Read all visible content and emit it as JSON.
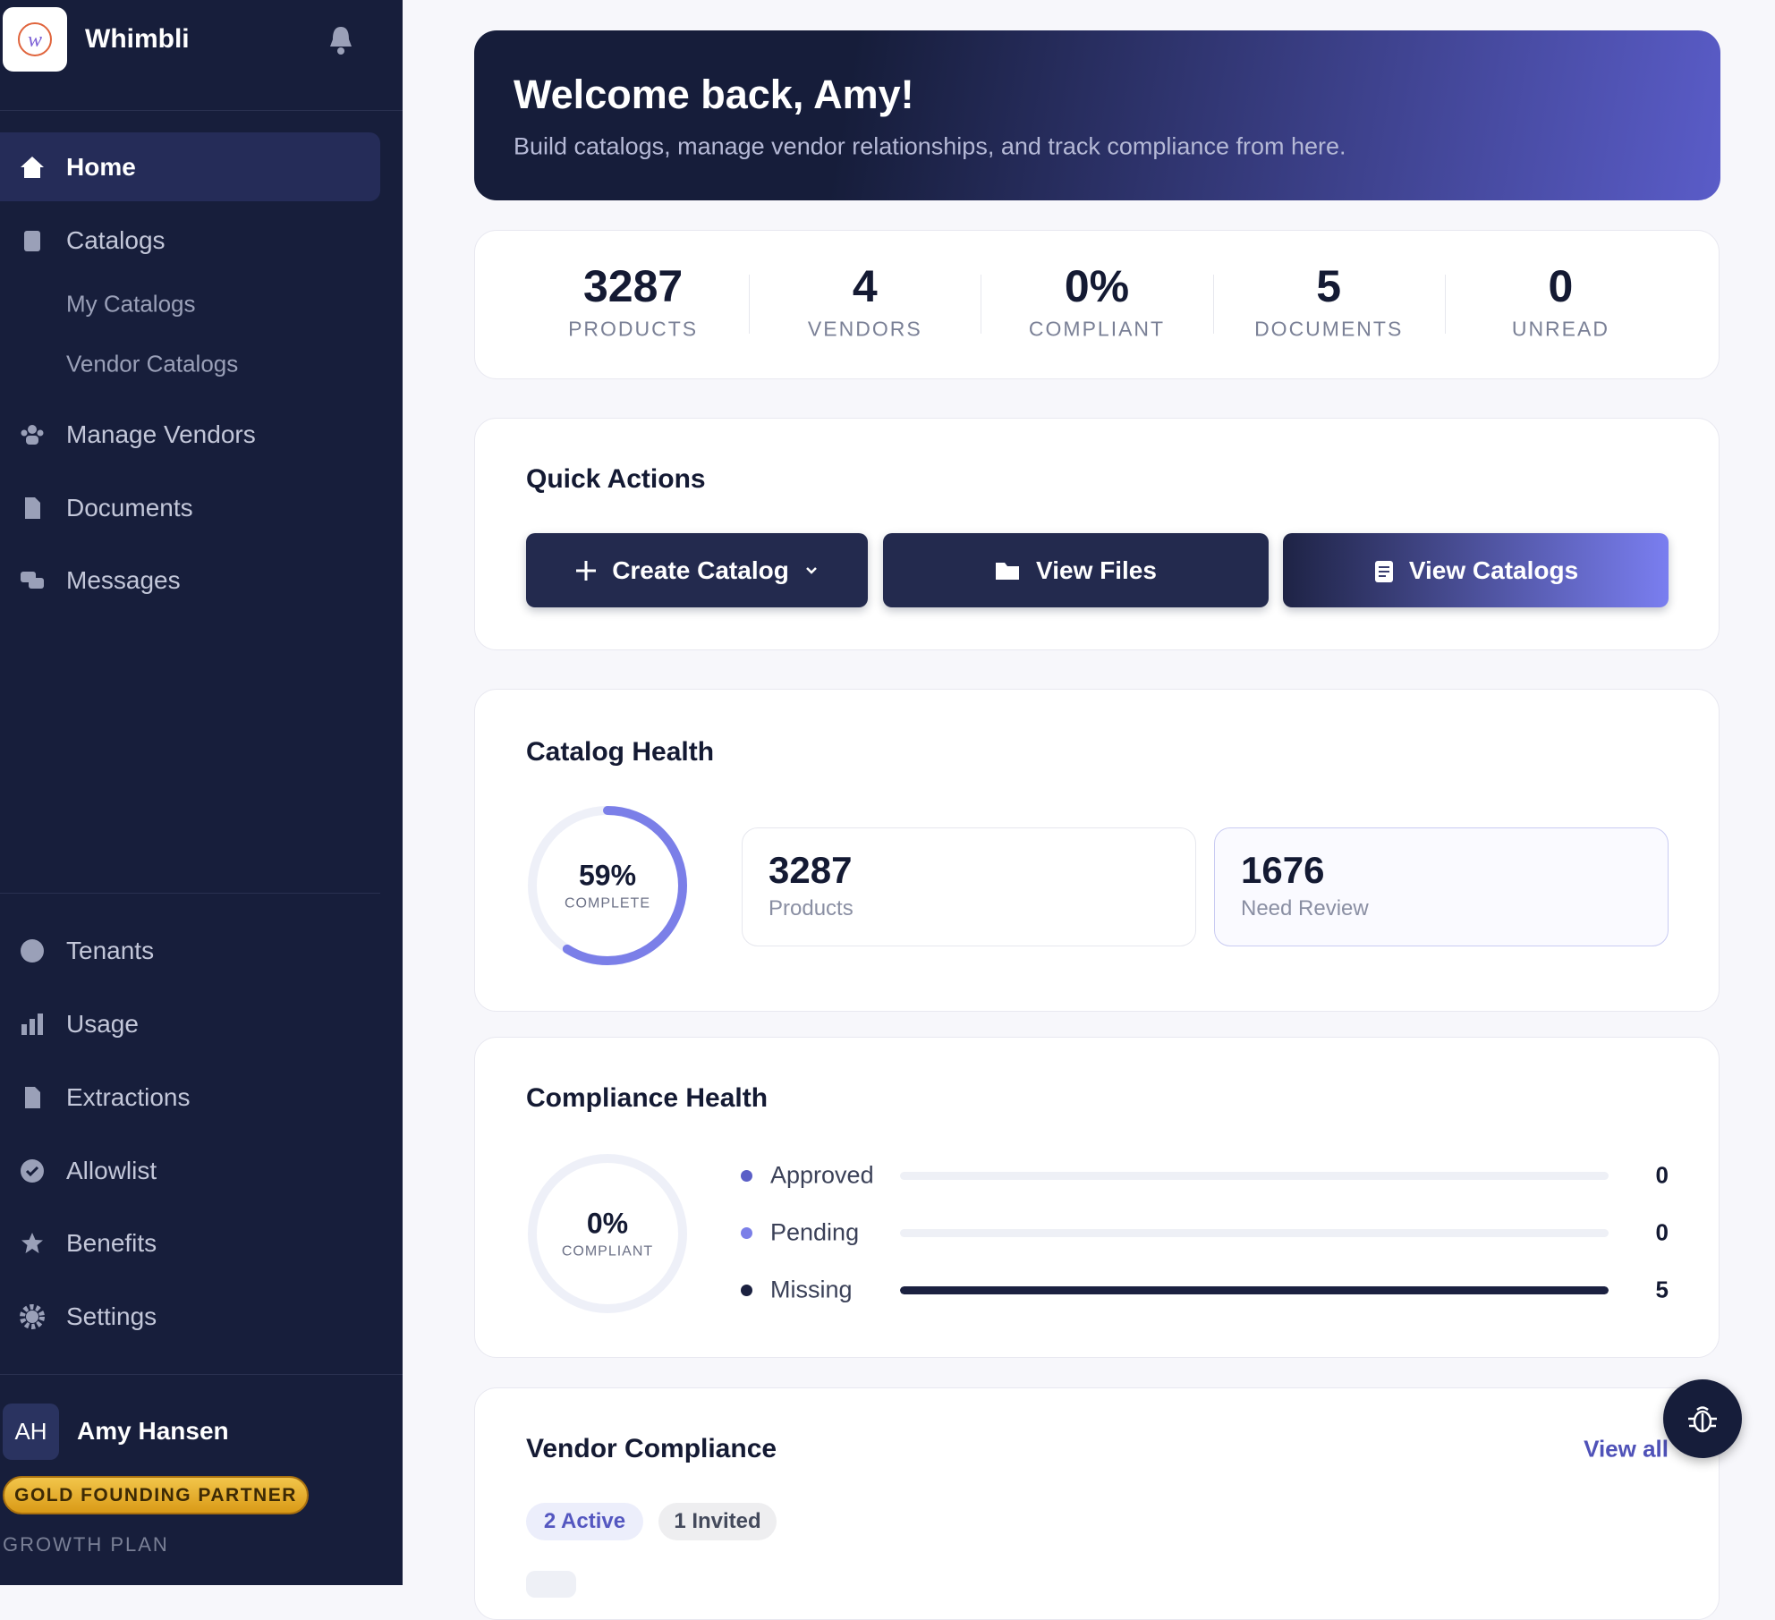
{
  "sidebar": {
    "brand": "Whimbli",
    "nav": [
      "Home",
      "Catalogs",
      "My Catalogs",
      "Vendor Catalogs",
      "Manage Vendors",
      "Documents",
      "Messages"
    ],
    "admin": [
      "Tenants",
      "Usage",
      "Extractions",
      "Allowlist",
      "Benefits",
      "Settings"
    ],
    "user": {
      "initials": "AH",
      "name": "Amy Hansen",
      "badge": "GOLD FOUNDING PARTNER",
      "plan": "GROWTH PLAN"
    }
  },
  "welcome": {
    "title": "Welcome back, Amy!",
    "subtitle": "Build catalogs, manage vendor relationships, and track compliance from here."
  },
  "stats": [
    {
      "value": "3287",
      "label": "PRODUCTS"
    },
    {
      "value": "4",
      "label": "VENDORS"
    },
    {
      "value": "0%",
      "label": "COMPLIANT"
    },
    {
      "value": "5",
      "label": "DOCUMENTS"
    },
    {
      "value": "0",
      "label": "UNREAD"
    }
  ],
  "quick_actions": {
    "title": "Quick Actions",
    "buttons": [
      "Create Catalog",
      "View Files",
      "View Catalogs"
    ]
  },
  "catalog_health": {
    "title": "Catalog Health",
    "progress": {
      "value": 59,
      "label": "59%",
      "caption": "COMPLETE"
    },
    "cards": [
      {
        "value": "3287",
        "label": "Products"
      },
      {
        "value": "1676",
        "label": "Need Review"
      }
    ]
  },
  "compliance_health": {
    "title": "Compliance Health",
    "progress": {
      "value": 0,
      "label": "0%",
      "caption": "COMPLIANT"
    },
    "rows": [
      {
        "label": "Approved",
        "value": 0,
        "color": "#5b5fc7"
      },
      {
        "label": "Pending",
        "value": 0,
        "color": "#7b7fe8"
      },
      {
        "label": "Missing",
        "value": 5,
        "color": "#1b2140"
      }
    ]
  },
  "vendor_compliance": {
    "title": "Vendor Compliance",
    "link": "View all",
    "filters": [
      "2 Active",
      "1 Invited"
    ]
  }
}
